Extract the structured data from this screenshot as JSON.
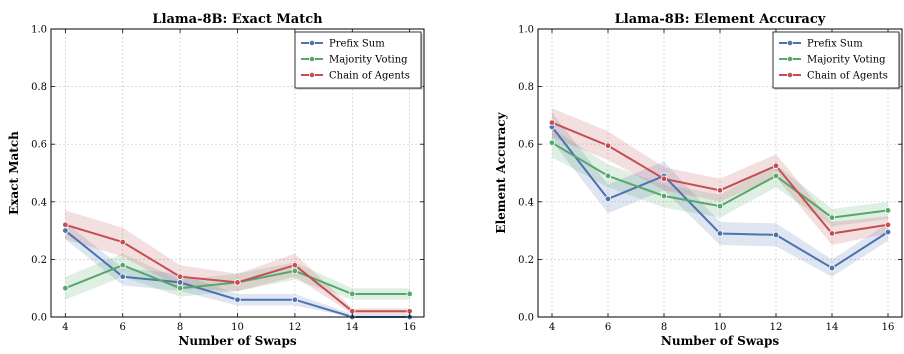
{
  "chart_data": [
    {
      "type": "line",
      "title": "Llama-8B: Exact Match",
      "xlabel": "Number of Swaps",
      "ylabel": "Exact Match",
      "x": [
        4,
        6,
        8,
        10,
        12,
        14,
        16
      ],
      "xlim": [
        3.5,
        16.5
      ],
      "ylim": [
        0,
        1.0
      ],
      "xticks": [
        "4",
        "6",
        "8",
        "10",
        "12",
        "14",
        "16"
      ],
      "yticks": [
        "0.0",
        "0.2",
        "0.4",
        "0.6",
        "0.8",
        "1.0"
      ],
      "grid": true,
      "legend_position": "top-right",
      "series": [
        {
          "name": "Prefix Sum",
          "color": "#4c72b0",
          "values": [
            0.3,
            0.14,
            0.12,
            0.06,
            0.06,
            0.0,
            0.0
          ],
          "band": [
            0.03,
            0.03,
            0.03,
            0.02,
            0.02,
            0.01,
            0.01
          ]
        },
        {
          "name": "Majority Voting",
          "color": "#55a868",
          "values": [
            0.1,
            0.18,
            0.1,
            0.12,
            0.16,
            0.08,
            0.08
          ],
          "band": [
            0.04,
            0.04,
            0.03,
            0.03,
            0.03,
            0.02,
            0.02
          ]
        },
        {
          "name": "Chain of Agents",
          "color": "#c44e52",
          "values": [
            0.32,
            0.26,
            0.14,
            0.12,
            0.18,
            0.02,
            0.02
          ],
          "band": [
            0.05,
            0.05,
            0.04,
            0.03,
            0.04,
            0.01,
            0.01
          ]
        }
      ]
    },
    {
      "type": "line",
      "title": "Llama-8B: Element Accuracy",
      "xlabel": "Number of Swaps",
      "ylabel": "Element Accuracy",
      "x": [
        4,
        6,
        8,
        10,
        12,
        14,
        16
      ],
      "xlim": [
        3.5,
        16.5
      ],
      "ylim": [
        0,
        1.0
      ],
      "xticks": [
        "4",
        "6",
        "8",
        "10",
        "12",
        "14",
        "16"
      ],
      "yticks": [
        "0.0",
        "0.2",
        "0.4",
        "0.6",
        "0.8",
        "1.0"
      ],
      "grid": true,
      "legend_position": "top-right",
      "series": [
        {
          "name": "Prefix Sum",
          "color": "#4c72b0",
          "values": [
            0.66,
            0.41,
            0.49,
            0.29,
            0.285,
            0.17,
            0.295
          ],
          "band": [
            0.05,
            0.05,
            0.05,
            0.04,
            0.04,
            0.03,
            0.03
          ]
        },
        {
          "name": "Majority Voting",
          "color": "#55a868",
          "values": [
            0.605,
            0.49,
            0.42,
            0.385,
            0.49,
            0.345,
            0.37
          ],
          "band": [
            0.05,
            0.04,
            0.04,
            0.04,
            0.04,
            0.03,
            0.03
          ]
        },
        {
          "name": "Chain of Agents",
          "color": "#c44e52",
          "values": [
            0.675,
            0.595,
            0.48,
            0.44,
            0.525,
            0.29,
            0.32
          ],
          "band": [
            0.05,
            0.05,
            0.04,
            0.04,
            0.04,
            0.04,
            0.03
          ]
        }
      ]
    }
  ]
}
